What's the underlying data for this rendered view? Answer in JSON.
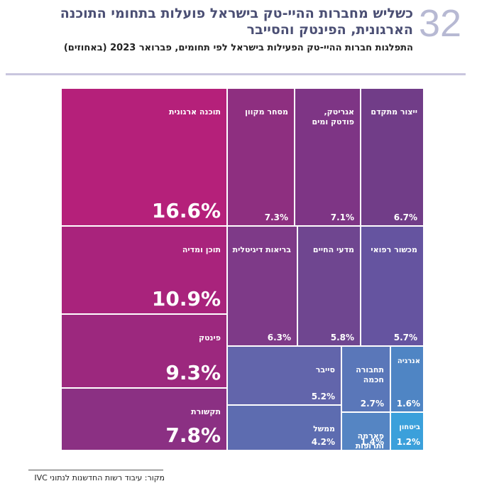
{
  "chart_data": {
    "type": "treemap",
    "figure_number": "32",
    "title": "כשליש מחברות ההיי-טק בישראל פועלות בתחומי התוכנה הארגונית, הפינטק והסייבר",
    "subtitle": "התפלגות חברות ההיי-טק הפעילות בישראל לפי תחומים, פברואר 2023 (באחוזים)",
    "source": "מקור: עיבוד רשות החדשנות לנתוני IVC",
    "categories": [
      "תוכנה ארגונית",
      "מסחר מקוון",
      "אגריטק, פודטק ומים",
      "ייצור מתקדם",
      "תוכן ומדיה",
      "בריאות דיגיטלית",
      "מדעי החיים",
      "מכשור רפואי",
      "פינטק",
      "תקשורת",
      "סייבר",
      "תחבורה חכמה",
      "אנרגיה",
      "ממשל",
      "פארמה ותרופות",
      "ביטחון"
    ],
    "values": [
      16.6,
      7.3,
      7.1,
      6.7,
      10.9,
      6.3,
      5.8,
      5.7,
      9.3,
      7.8,
      5.2,
      2.7,
      1.6,
      4.2,
      1.4,
      1.2
    ],
    "value_labels": [
      "16.6%",
      "7.3%",
      "7.1%",
      "6.7%",
      "10.9%",
      "6.3%",
      "5.8%",
      "5.7%",
      "9.3%",
      "7.8%",
      "5.2%",
      "2.7%",
      "1.6%",
      "4.2%",
      "1.4%",
      "1.2%"
    ],
    "colors": [
      "#b5207a",
      "#8e2f80",
      "#7e3585",
      "#713d88",
      "#a9237c",
      "#7e3a88",
      "#6f4690",
      "#6554a0",
      "#9c287e",
      "#8b3083",
      "#6265ab",
      "#5a77b9",
      "#4f85c4",
      "#5d6cb0",
      "#5585c3",
      "#3ba0db"
    ]
  }
}
